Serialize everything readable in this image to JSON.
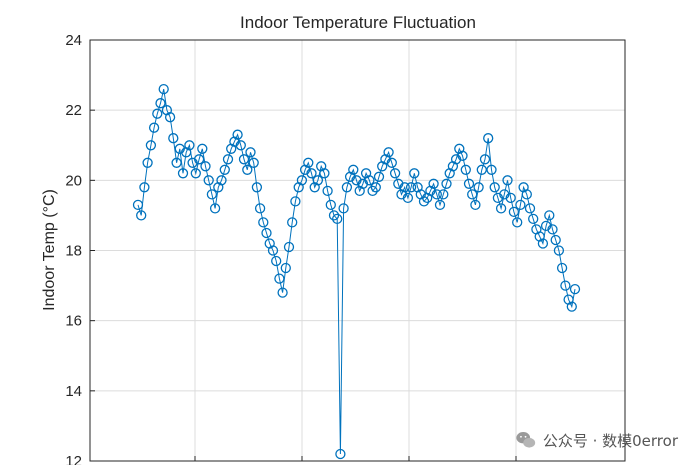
{
  "chart_data": {
    "type": "scatter",
    "title": "Indoor Temperature Fluctuation",
    "xlabel": "",
    "ylabel": "Indoor Temp (°C)",
    "ylim": [
      12,
      24
    ],
    "yticks": [
      12,
      14,
      16,
      18,
      20,
      22,
      24
    ],
    "grid": true,
    "marker": "circle",
    "line": true,
    "color": "#0072BD",
    "series": [
      {
        "values": [
          19.3,
          19.0,
          19.8,
          20.5,
          21.0,
          21.5,
          21.9,
          22.2,
          22.6,
          22.0,
          21.8,
          21.2,
          20.5,
          20.9,
          20.2,
          20.8,
          21.0,
          20.5,
          20.2,
          20.6,
          20.9,
          20.4,
          20.0,
          19.6,
          19.2,
          19.8,
          20.0,
          20.3,
          20.6,
          20.9,
          21.1,
          21.3,
          21.0,
          20.6,
          20.3,
          20.8,
          20.5,
          19.8,
          19.2,
          18.8,
          18.5,
          18.2,
          18.0,
          17.7,
          17.2,
          16.8,
          17.5,
          18.1,
          18.8,
          19.4,
          19.8,
          20.0,
          20.3,
          20.5,
          20.2,
          19.8,
          20.0,
          20.4,
          20.2,
          19.7,
          19.3,
          19.0,
          18.9,
          12.2,
          19.2,
          19.8,
          20.1,
          20.3,
          20.0,
          19.7,
          19.9,
          20.2,
          20.0,
          19.7,
          19.8,
          20.1,
          20.4,
          20.6,
          20.8,
          20.5,
          20.2,
          19.9,
          19.6,
          19.8,
          19.5,
          19.8,
          20.2,
          19.8,
          19.6,
          19.4,
          19.5,
          19.7,
          19.9,
          19.6,
          19.3,
          19.6,
          19.9,
          20.2,
          20.4,
          20.6,
          20.9,
          20.7,
          20.3,
          19.9,
          19.6,
          19.3,
          19.8,
          20.3,
          20.6,
          21.2,
          20.3,
          19.8,
          19.5,
          19.2,
          19.6,
          20.0,
          19.5,
          19.1,
          18.8,
          19.3,
          19.8,
          19.6,
          19.2,
          18.9,
          18.6,
          18.4,
          18.2,
          18.7,
          19.0,
          18.6,
          18.3,
          18.0,
          17.5,
          17.0,
          16.6,
          16.4,
          16.9
        ],
        "x": [
          0.0,
          1.0,
          2.0,
          3.0,
          4.0,
          5.0,
          6.0,
          7.0,
          8.0,
          9.0,
          10.0,
          11.0,
          12.0,
          13.0,
          14.0,
          15.0,
          16.0,
          17.0,
          18.0,
          19.0,
          20.0,
          21.0,
          22.0,
          23.0,
          24.0,
          25.0,
          26.0,
          27.0,
          28.0,
          29.0,
          30.0,
          31.0,
          32.0,
          33.0,
          34.0,
          35.0,
          36.0,
          37.0,
          38.0,
          39.0,
          40.0,
          41.0,
          42.0,
          43.0,
          44.0,
          45.0,
          46.0,
          47.0,
          48.0,
          49.0,
          50.0,
          51.0,
          52.0,
          53.0,
          54.0,
          55.0,
          56.0,
          57.0,
          58.0,
          59.0,
          60.0,
          61.0,
          62.0,
          63.0,
          64.0,
          65.0,
          66.0,
          67.0,
          68.0,
          69.0,
          70.0,
          71.0,
          72.0,
          73.0,
          74.0,
          75.0,
          76.0,
          77.0,
          78.0,
          79.0,
          80.0,
          81.0,
          82.0,
          83.0,
          84.0,
          85.0,
          86.0,
          87.0,
          88.0,
          89.0,
          90.0,
          91.0,
          92.0,
          93.0,
          94.0,
          95.0,
          96.0,
          97.0,
          98.0,
          99.0,
          100.0,
          101.0,
          102.0,
          103.0,
          104.0,
          105.0,
          106.0,
          107.0,
          108.0,
          109.0,
          110.0,
          111.0,
          112.0,
          113.0,
          114.0,
          115.0,
          116.0,
          117.0,
          118.0,
          119.0,
          120.0,
          121.0,
          122.0,
          123.0,
          124.0,
          125.0,
          126.0,
          127.0,
          128.0,
          129.0,
          130.0,
          131.0,
          132.0,
          133.0,
          134.0,
          135.0,
          136.0
        ]
      }
    ]
  },
  "watermark": {
    "text": "公众号 · 数模0error",
    "icon": "wechat-logo"
  }
}
